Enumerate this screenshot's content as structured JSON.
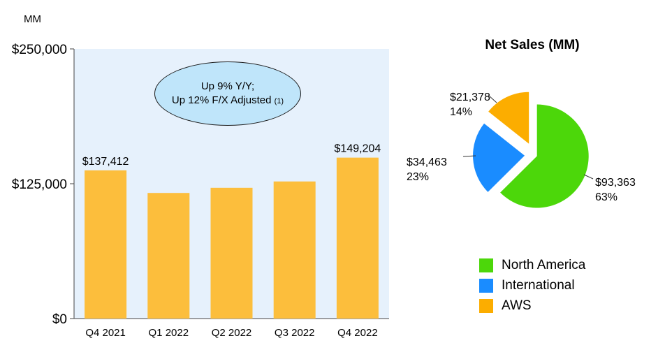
{
  "colors": {
    "plot_bg": "#e6f1fc",
    "bar": "#fcbe3c",
    "north_america": "#4cd70a",
    "international": "#1a8cff",
    "aws": "#fcad00",
    "callout_bg": "#bfe5fa"
  },
  "callout": {
    "line1": "Up 9% Y/Y;",
    "line2": "Up 12% F/X Adjusted",
    "note": "(1)"
  },
  "chart_data": [
    {
      "type": "bar",
      "title": "",
      "ylabel": "MM",
      "ylim": [
        0,
        250000
      ],
      "yticks": [
        "$0",
        "$125,000",
        "$250,000"
      ],
      "categories": [
        "Q4 2021",
        "Q1 2022",
        "Q2 2022",
        "Q3 2022",
        "Q4 2022"
      ],
      "values": [
        137412,
        116444,
        121234,
        127101,
        149204
      ],
      "value_labels": [
        "$137,412",
        "",
        "",
        "",
        "$149,204"
      ],
      "grid": false
    },
    {
      "type": "pie",
      "title": "Net Sales (MM)",
      "slices": [
        {
          "name": "North America",
          "value": 93363,
          "label": "$93,363",
          "pct": "63%",
          "color": "#4cd70a"
        },
        {
          "name": "International",
          "value": 34463,
          "label": "$34,463",
          "pct": "23%",
          "color": "#1a8cff"
        },
        {
          "name": "AWS",
          "value": 21378,
          "label": "$21,378",
          "pct": "14%",
          "color": "#fcad00"
        }
      ],
      "legend_position": "bottom"
    }
  ]
}
